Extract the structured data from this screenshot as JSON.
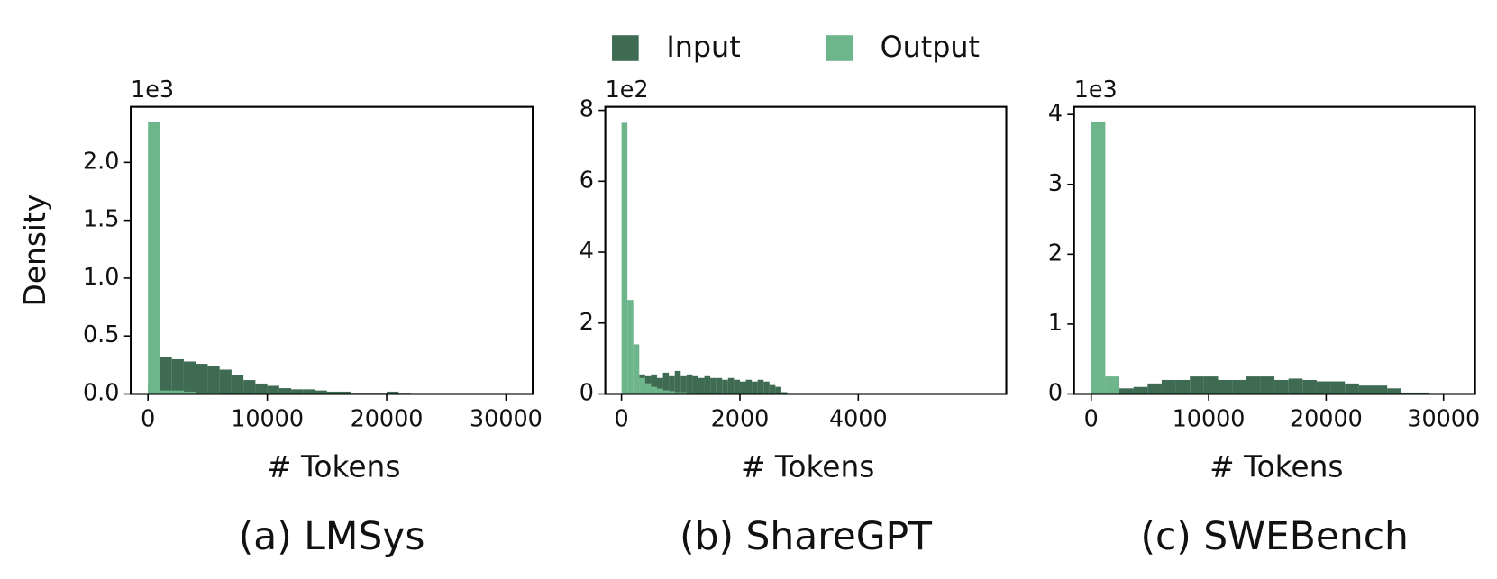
{
  "legend": [
    {
      "name": "Input",
      "color": "#3e6b52"
    },
    {
      "name": "Output",
      "color": "#6db58a"
    }
  ],
  "chart_data": [
    {
      "type": "histogram",
      "caption": "(a) LMSys",
      "xlabel": "# Tokens",
      "ylabel": "Density",
      "y_offset_label": "1e3",
      "bins": [
        0,
        1000,
        2000,
        3000,
        4000,
        5000,
        6000,
        7000,
        8000,
        9000,
        10000,
        11000,
        12000,
        13000,
        14000,
        15000,
        16000,
        17000,
        18000,
        19000,
        20000,
        21000,
        22000,
        23000,
        24000,
        25000,
        26000,
        27000,
        28000,
        29000,
        30000,
        31000
      ],
      "series": [
        {
          "values": [
            0.1,
            0.32,
            0.3,
            0.28,
            0.26,
            0.24,
            0.21,
            0.16,
            0.12,
            0.09,
            0.07,
            0.05,
            0.04,
            0.04,
            0.03,
            0.02,
            0.02,
            0.01,
            0.01,
            0.01,
            0.02,
            0.01,
            0,
            0,
            0,
            0,
            0,
            0,
            0,
            0,
            0.005
          ]
        },
        {
          "values": [
            2.35,
            0.03,
            0.03,
            0.02,
            0.01,
            0.01,
            0,
            0,
            0,
            0,
            0,
            0,
            0,
            0,
            0,
            0,
            0,
            0,
            0,
            0,
            0,
            0,
            0,
            0,
            0,
            0,
            0,
            0,
            0,
            0,
            0
          ]
        }
      ],
      "xlim": [
        -1440,
        32240
      ],
      "xticks": [
        0,
        10000,
        20000,
        30000
      ],
      "ylim": [
        0,
        2.48
      ],
      "yticks": [
        {
          "value": 0,
          "label": "0.0"
        },
        0.5,
        {
          "value": 1,
          "label": "1.0"
        },
        1.5,
        {
          "value": 2,
          "label": "2.0"
        }
      ]
    },
    {
      "type": "histogram",
      "caption": "(b) ShareGPT",
      "xlabel": "# Tokens",
      "y_offset_label": "1e2",
      "bins": [
        0,
        100,
        200,
        300,
        400,
        500,
        600,
        700,
        800,
        900,
        1000,
        1100,
        1200,
        1300,
        1400,
        1500,
        1600,
        1700,
        1800,
        1900,
        2000,
        2100,
        2200,
        2300,
        2400,
        2500,
        2600,
        2700,
        2800
      ],
      "series": [
        {
          "values": [
            0,
            0,
            0,
            0.55,
            0.5,
            0.55,
            0.45,
            0.6,
            0.5,
            0.65,
            0.5,
            0.55,
            0.5,
            0.45,
            0.5,
            0.45,
            0.45,
            0.4,
            0.45,
            0.4,
            0.35,
            0.4,
            0.35,
            0.4,
            0.35,
            0.25,
            0.2,
            0.05
          ]
        },
        {
          "values": [
            7.65,
            2.65,
            1.4,
            0.45,
            0.3,
            0.2,
            0.15,
            0.1,
            0.08,
            0.05,
            0.05,
            0.03,
            0.02,
            0,
            0,
            0,
            0,
            0,
            0,
            0,
            0,
            0,
            0,
            0,
            0,
            0,
            0,
            0
          ]
        }
      ],
      "xlim": [
        -274,
        6500
      ],
      "xticks": [
        0,
        2000,
        4000
      ],
      "ylim": [
        0,
        8.1
      ],
      "yticks": [
        0,
        2,
        4,
        6,
        8
      ]
    },
    {
      "type": "histogram",
      "caption": "(c) SWEBench",
      "xlabel": "# Tokens",
      "y_offset_label": "1e3",
      "bins": [
        0,
        1200,
        2400,
        3600,
        4800,
        6000,
        7200,
        8400,
        9600,
        10800,
        12000,
        13200,
        14400,
        15600,
        16800,
        18000,
        19200,
        20400,
        21600,
        22800,
        24000,
        25200,
        26400,
        27600,
        28800
      ],
      "series": [
        {
          "values": [
            0,
            0.2,
            0.08,
            0.1,
            0.15,
            0.2,
            0.2,
            0.25,
            0.25,
            0.2,
            0.2,
            0.25,
            0.25,
            0.2,
            0.22,
            0.2,
            0.18,
            0.18,
            0.15,
            0.12,
            0.12,
            0.08,
            0.02,
            0.02
          ]
        },
        {
          "values": [
            3.9,
            0.25,
            0,
            0,
            0,
            0,
            0,
            0,
            0,
            0,
            0,
            0,
            0,
            0,
            0,
            0,
            0,
            0,
            0,
            0,
            0,
            0,
            0,
            0
          ]
        }
      ],
      "xlim": [
        -1460,
        32680
      ],
      "xticks": [
        0,
        10000,
        20000,
        30000
      ],
      "ylim": [
        0,
        4.11
      ],
      "yticks": [
        0,
        1,
        2,
        3,
        4
      ]
    }
  ]
}
